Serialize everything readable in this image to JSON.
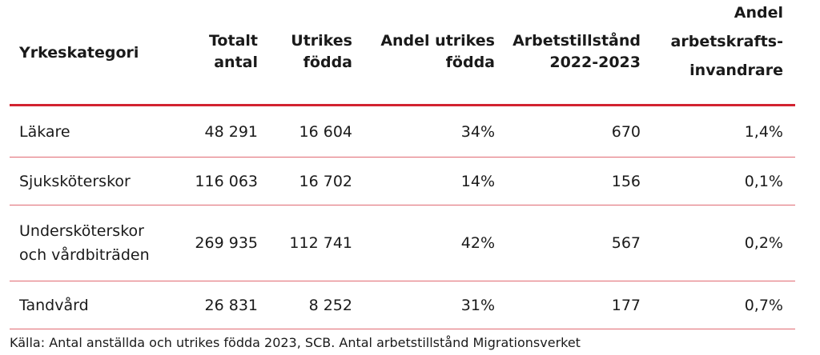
{
  "table": {
    "headers": {
      "category": "Yrkeskategori",
      "total": [
        "Totalt",
        "antal"
      ],
      "foreign": [
        "Utrikes",
        "födda"
      ],
      "share_foreign": [
        "Andel utrikes",
        "födda"
      ],
      "permits": [
        "Arbetstillstånd",
        "2022-2023"
      ],
      "share_labour": [
        "Andel",
        "arbetskrafts-",
        "invandrare"
      ]
    },
    "rows": [
      {
        "category": [
          "Läkare"
        ],
        "total": "48 291",
        "foreign": "16 604",
        "share_foreign": "34%",
        "permits": "670",
        "share_labour": "1,4%"
      },
      {
        "category": [
          "Sjuksköterskor"
        ],
        "total": "116 063",
        "foreign": "16 702",
        "share_foreign": "14%",
        "permits": "156",
        "share_labour": "0,1%"
      },
      {
        "category": [
          "Undersköterskor",
          "och vårdbiträden"
        ],
        "total": "269 935",
        "foreign": "112 741",
        "share_foreign": "42%",
        "permits": "567",
        "share_labour": "0,2%"
      },
      {
        "category": [
          "Tandvård"
        ],
        "total": "26 831",
        "foreign": "8 252",
        "share_foreign": "31%",
        "permits": "177",
        "share_labour": "0,7%"
      }
    ]
  },
  "source": "Källa: Antal anställda och utrikes födda 2023, SCB. Antal arbetstillstånd Migrationsverket",
  "colors": {
    "accent": "#d22330",
    "row_rule": "#e06a72"
  }
}
